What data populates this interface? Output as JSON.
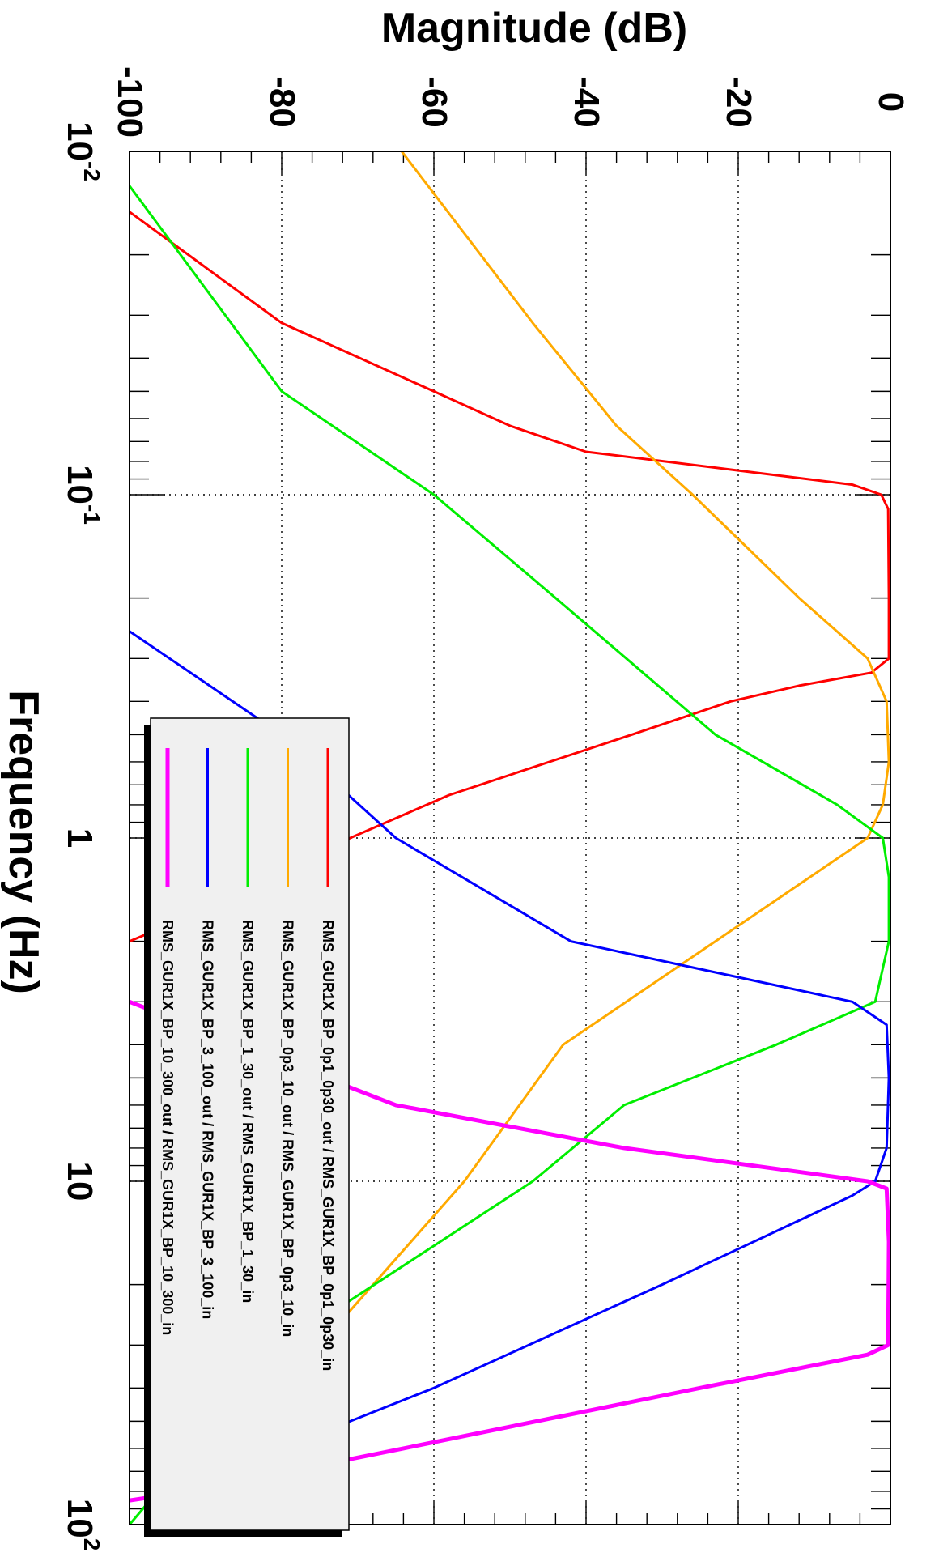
{
  "chart_data": {
    "type": "line",
    "orientation": "rotated-90-clockwise",
    "title": "",
    "xlabel": "Frequency (Hz)",
    "ylabel": "Magnitude (dB)",
    "xscale": "log",
    "xlim": [
      0.01,
      100
    ],
    "ylim": [
      -100,
      0
    ],
    "grid": true,
    "legend_position": "center",
    "x_ticks": [
      {
        "value": 0.01,
        "base": "10",
        "exp": "-2"
      },
      {
        "value": 0.1,
        "base": "10",
        "exp": "-1"
      },
      {
        "value": 1,
        "base": "1",
        "exp": ""
      },
      {
        "value": 10,
        "base": "10",
        "exp": ""
      },
      {
        "value": 100,
        "base": "10",
        "exp": "2"
      }
    ],
    "y_ticks": [
      "-100",
      "-80",
      "-60",
      "-40",
      "-20",
      "0"
    ],
    "series": [
      {
        "name": "RMS_GUR1X_BP_0p1_0p30_out / RMS_GUR1X_BP_0p1_0p30_in",
        "color": "#ff0000",
        "width": 3,
        "points": [
          [
            0.015,
            -100
          ],
          [
            0.0316,
            -80
          ],
          [
            0.05,
            -60
          ],
          [
            0.063,
            -50
          ],
          [
            0.075,
            -40
          ],
          [
            0.085,
            -20
          ],
          [
            0.0935,
            -5
          ],
          [
            0.1,
            -1.2
          ],
          [
            0.11,
            -0.3
          ],
          [
            0.2,
            -0.2
          ],
          [
            0.3,
            -0.2
          ],
          [
            0.33,
            -2.5
          ],
          [
            0.36,
            -12
          ],
          [
            0.4,
            -21
          ],
          [
            0.5,
            -34
          ],
          [
            0.75,
            -58
          ],
          [
            1.0,
            -71
          ],
          [
            1.3,
            -80
          ],
          [
            2.0,
            -100
          ]
        ]
      },
      {
        "name": "RMS_GUR1X_BP_0p3_10_out / RMS_GUR1X_BP_0p3_10_in",
        "color": "#ffaa00",
        "width": 3,
        "points": [
          [
            0.0095,
            -65
          ],
          [
            0.0316,
            -47
          ],
          [
            0.063,
            -36
          ],
          [
            0.1,
            -26
          ],
          [
            0.2,
            -12
          ],
          [
            0.3,
            -3
          ],
          [
            0.4,
            -0.5
          ],
          [
            0.6,
            -0.2
          ],
          [
            0.8,
            -1
          ],
          [
            1.0,
            -3
          ],
          [
            2.0,
            -23
          ],
          [
            4.0,
            -43
          ],
          [
            10.0,
            -56
          ],
          [
            30.0,
            -75
          ],
          [
            100.0,
            -87
          ]
        ]
      },
      {
        "name": "RMS_GUR1X_BP_1_30_out / RMS_GUR1X_BP_1_30_in",
        "color": "#00ee00",
        "width": 3,
        "points": [
          [
            0.0126,
            -100
          ],
          [
            0.05,
            -80
          ],
          [
            0.1,
            -60
          ],
          [
            0.2,
            -44
          ],
          [
            0.5,
            -23
          ],
          [
            0.8,
            -7
          ],
          [
            1.0,
            -1
          ],
          [
            1.3,
            -0.2
          ],
          [
            2.0,
            -0.2
          ],
          [
            3.0,
            -2
          ],
          [
            4.0,
            -15
          ],
          [
            6.0,
            -35
          ],
          [
            10.0,
            -47
          ],
          [
            30.0,
            -80
          ],
          [
            100.0,
            -100
          ]
        ]
      },
      {
        "name": "RMS_GUR1X_BP_3_100_out / RMS_GUR1X_BP_3_100_in",
        "color": "#0000ff",
        "width": 3,
        "points": [
          [
            0.25,
            -100
          ],
          [
            0.5,
            -80
          ],
          [
            1.0,
            -65
          ],
          [
            2.0,
            -42
          ],
          [
            3.0,
            -5
          ],
          [
            3.5,
            -0.5
          ],
          [
            5.0,
            -0.2
          ],
          [
            8.0,
            -0.5
          ],
          [
            10.0,
            -2
          ],
          [
            11.0,
            -5
          ],
          [
            20.0,
            -30
          ],
          [
            40.0,
            -60
          ],
          [
            60.0,
            -80
          ],
          [
            100.0,
            -93
          ]
        ]
      },
      {
        "name": "RMS_GUR1X_BP_10_300_out / RMS_GUR1X_BP_10_300_in",
        "color": "#ff00ff",
        "width": 5,
        "points": [
          [
            3.0,
            -100
          ],
          [
            6.0,
            -65
          ],
          [
            8.0,
            -35
          ],
          [
            10.0,
            -3
          ],
          [
            10.5,
            -0.5
          ],
          [
            15.0,
            -0.2
          ],
          [
            30.0,
            -0.3
          ],
          [
            32.0,
            -3
          ],
          [
            40.0,
            -25
          ],
          [
            60.0,
            -64
          ],
          [
            80.0,
            -92
          ],
          [
            85.0,
            -100
          ]
        ]
      }
    ]
  }
}
